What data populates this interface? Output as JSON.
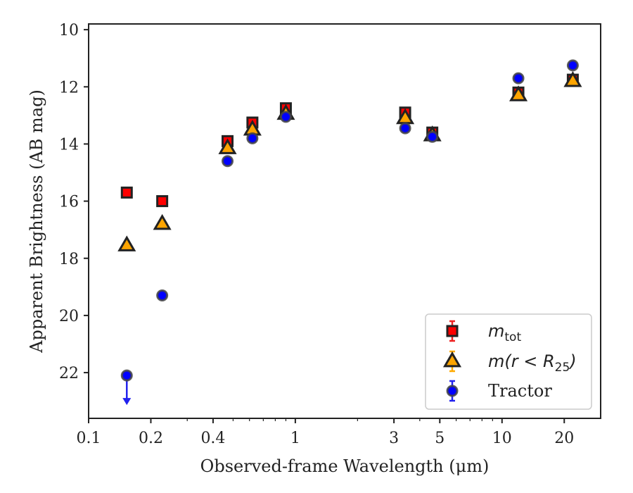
{
  "chart_data": {
    "type": "scatter",
    "title": "",
    "xlabel": "Observed-frame Wavelength (μm)",
    "ylabel": "Apparent Brightness (AB mag)",
    "xscale": "log",
    "xlim": [
      0.1,
      30
    ],
    "ylim": [
      23.6,
      9.8
    ],
    "y_inverted": true,
    "xticks": [
      0.1,
      0.2,
      0.4,
      1,
      3,
      5,
      10,
      20
    ],
    "xtick_labels": [
      "0.1",
      "0.2",
      "0.4",
      "1",
      "3",
      "5",
      "10",
      "20"
    ],
    "yticks": [
      10,
      12,
      14,
      16,
      18,
      20,
      22
    ],
    "ytick_labels": [
      "10",
      "12",
      "14",
      "16",
      "18",
      "20",
      "22"
    ],
    "grid": false,
    "legend_position": "lower-right",
    "series": [
      {
        "name": "m_tot",
        "legend_main": "m",
        "legend_sub": "tot",
        "marker": "square",
        "color": "#ff0000",
        "edge": "#222222",
        "points": [
          {
            "x": 0.153,
            "y": 15.7
          },
          {
            "x": 0.227,
            "y": 16.0
          },
          {
            "x": 0.47,
            "y": 13.9
          },
          {
            "x": 0.62,
            "y": 13.25
          },
          {
            "x": 0.9,
            "y": 12.75
          },
          {
            "x": 3.4,
            "y": 12.9
          },
          {
            "x": 4.6,
            "y": 13.6
          },
          {
            "x": 12.0,
            "y": 12.2
          },
          {
            "x": 22.0,
            "y": 11.75
          }
        ]
      },
      {
        "name": "m(r < R_25)",
        "legend_main": "m(r < R",
        "legend_sub": "25",
        "legend_tail": ")",
        "marker": "triangle",
        "color": "#ffa500",
        "edge": "#222222",
        "points": [
          {
            "x": 0.153,
            "y": 17.55
          },
          {
            "x": 0.227,
            "y": 16.8
          },
          {
            "x": 0.47,
            "y": 14.15
          },
          {
            "x": 0.62,
            "y": 13.5
          },
          {
            "x": 0.9,
            "y": 12.95
          },
          {
            "x": 3.4,
            "y": 13.1
          },
          {
            "x": 4.6,
            "y": 13.7
          },
          {
            "x": 12.0,
            "y": 12.3
          },
          {
            "x": 22.0,
            "y": 11.8
          }
        ]
      },
      {
        "name": "Tractor",
        "marker": "circle",
        "color": "#0000ff",
        "edge": "#444444",
        "points": [
          {
            "x": 0.153,
            "y": 22.1,
            "upper_limit": true
          },
          {
            "x": 0.227,
            "y": 19.3
          },
          {
            "x": 0.47,
            "y": 14.6
          },
          {
            "x": 0.62,
            "y": 13.8
          },
          {
            "x": 0.9,
            "y": 13.05
          },
          {
            "x": 3.4,
            "y": 13.45
          },
          {
            "x": 4.6,
            "y": 13.75
          },
          {
            "x": 12.0,
            "y": 11.7
          },
          {
            "x": 22.0,
            "y": 11.25
          }
        ]
      }
    ]
  }
}
